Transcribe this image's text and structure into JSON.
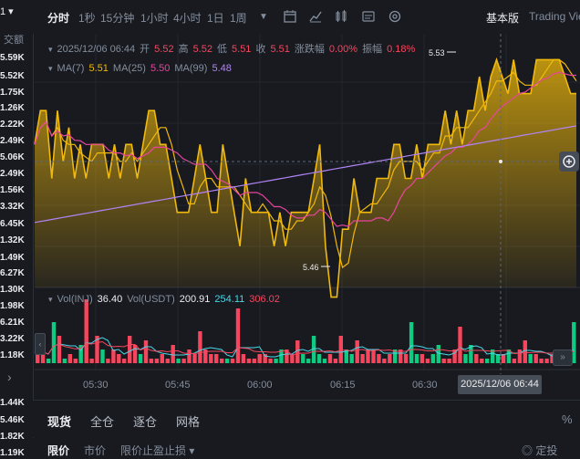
{
  "left_panel": {
    "header_title": "1",
    "column_label": "交额",
    "values": [
      "5.59K",
      "5.52K",
      "1.75K",
      "1.26K",
      "2.22K",
      "2.49K",
      "5.06K",
      "2.49K",
      "1.56K",
      "3.32K",
      "6.45K",
      "1.32K",
      "1.49K",
      "6.27K",
      "1.30K",
      "1.98K",
      "6.21K",
      "3.22K",
      "1.18K",
      "1.44K",
      "5.46K",
      "1.82K",
      "1.19K"
    ]
  },
  "toolbar": {
    "timeframes": [
      "分时",
      "1秒",
      "15分钟",
      "1小时",
      "4小时",
      "1日",
      "1周"
    ],
    "active_timeframe": "分时",
    "view_basic": "基本版",
    "view_tradingview": "Trading View"
  },
  "ohlc": {
    "datetime": "2025/12/06 06:44",
    "open_label": "开",
    "open": "5.52",
    "high_label": "高",
    "high": "5.52",
    "low_label": "低",
    "low": "5.51",
    "close_label": "收",
    "close": "5.51",
    "change_label": "涨跌幅",
    "change": "0.00%",
    "amplitude_label": "振幅",
    "amplitude": "0.18%"
  },
  "ma": {
    "ma7_label": "MA(7)",
    "ma7": "5.51",
    "ma25_label": "MA(25)",
    "ma25": "5.50",
    "ma99_label": "MA(99)",
    "ma99": "5.48"
  },
  "chart_annotations": {
    "high_marker": "5.53",
    "low_marker": "5.46"
  },
  "volume": {
    "vol_label": "Vol(INJ)",
    "vol_inj": "36.40",
    "vol_usdt_label": "Vol(USDT)",
    "vol_usdt": "200.91",
    "vol_ma1": "254.11",
    "vol_ma2": "306.02"
  },
  "time_axis": {
    "labels": [
      "05:30",
      "05:45",
      "06:00",
      "06:15",
      "06:30"
    ],
    "crosshair_label": "2025/12/06 06:44"
  },
  "tabs": {
    "items": [
      "现货",
      "全仓",
      "逐仓",
      "网格"
    ],
    "active": "现货"
  },
  "order_types": {
    "items": [
      "限价",
      "市价",
      "限价止盈止损"
    ],
    "active": "限价",
    "right": "定投"
  },
  "colors": {
    "background": "#181a20",
    "price_line": "#f0b90b",
    "up": "#0ecb81",
    "down": "#f6465d",
    "ma25": "#e7459c",
    "ma99": "#b084f5"
  },
  "chart_data": {
    "type": "area",
    "x": [
      "05:30",
      "05:45",
      "06:00",
      "06:15",
      "06:30",
      "06:44"
    ],
    "price_high": 5.53,
    "price_low": 5.46,
    "last": {
      "open": 5.52,
      "high": 5.52,
      "low": 5.51,
      "close": 5.51
    },
    "ma": {
      "MA(7)": 5.51,
      "MA(25)": 5.5,
      "MA(99)": 5.48
    },
    "volume_last": {
      "Vol(INJ)": 36.4,
      "Vol(USDT)": 200.91
    }
  }
}
